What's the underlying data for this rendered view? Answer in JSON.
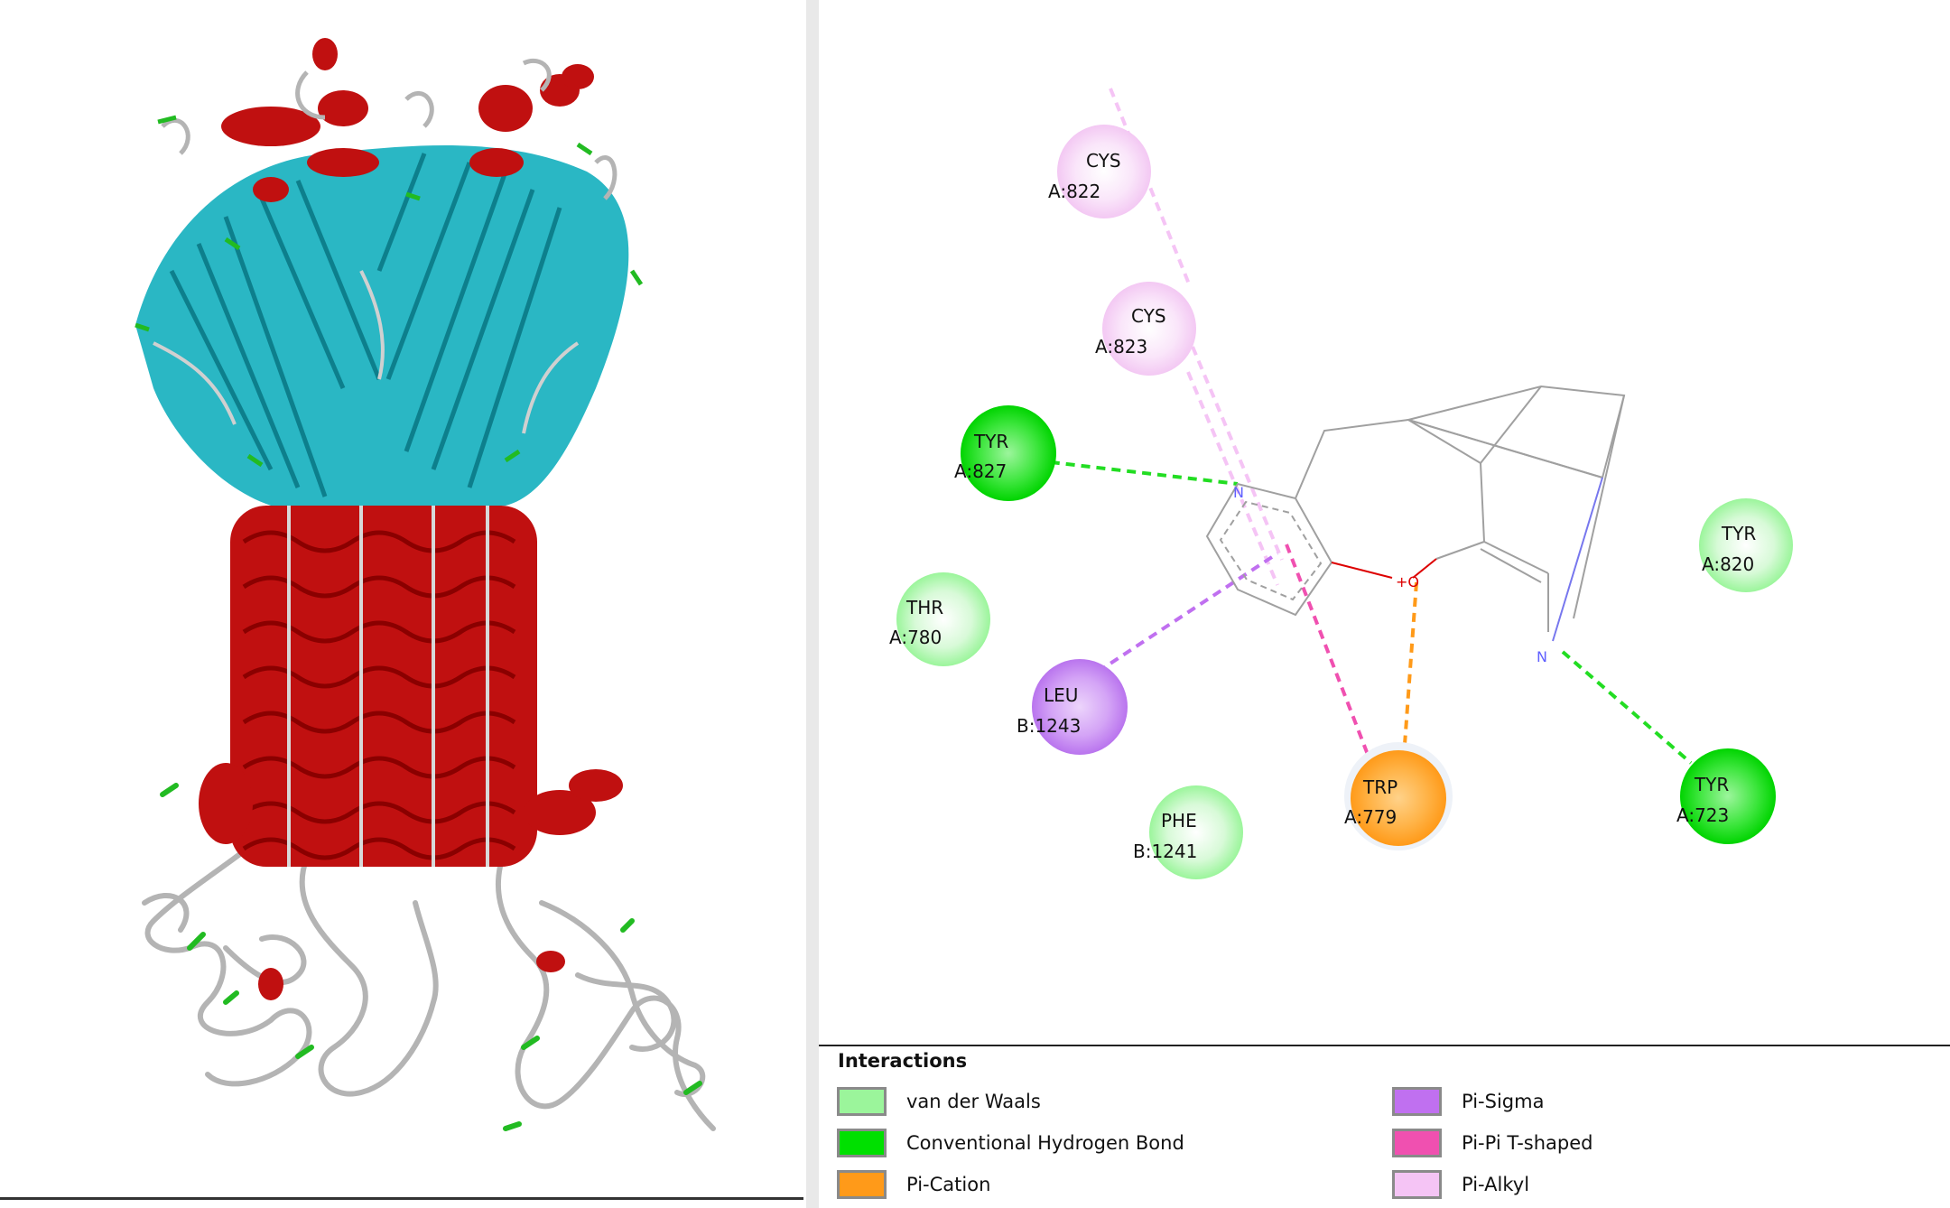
{
  "legend": {
    "title": "Interactions",
    "items": [
      {
        "label": "van der Waals",
        "color": "#9bf59b"
      },
      {
        "label": "Conventional Hydrogen Bond",
        "color": "#00e000"
      },
      {
        "label": "Pi-Cation",
        "color": "#ff9a19"
      },
      {
        "label": "Pi-Sigma",
        "color": "#c070f0"
      },
      {
        "label": "Pi-Pi T-shaped",
        "color": "#f050b0"
      },
      {
        "label": "Pi-Alkyl",
        "color": "#f5c4f5"
      }
    ]
  },
  "residues": [
    {
      "name": "CYS",
      "id": "A:822",
      "type": "Pi-Alkyl"
    },
    {
      "name": "CYS",
      "id": "A:823",
      "type": "Pi-Alkyl"
    },
    {
      "name": "TYR",
      "id": "A:827",
      "type": "Conventional Hydrogen Bond"
    },
    {
      "name": "THR",
      "id": "A:780",
      "type": "van der Waals"
    },
    {
      "name": "LEU",
      "id": "B:1243",
      "type": "Pi-Sigma"
    },
    {
      "name": "PHE",
      "id": "B:1241",
      "type": "van der Waals"
    },
    {
      "name": "TRP",
      "id": "A:779",
      "type": "Pi-Cation"
    },
    {
      "name": "TYR",
      "id": "A:820",
      "type": "van der Waals"
    },
    {
      "name": "TYR",
      "id": "A:723",
      "type": "Conventional Hydrogen Bond"
    }
  ],
  "ligand_atoms": {
    "n1": "N",
    "o1": "+O",
    "n2": "N"
  }
}
